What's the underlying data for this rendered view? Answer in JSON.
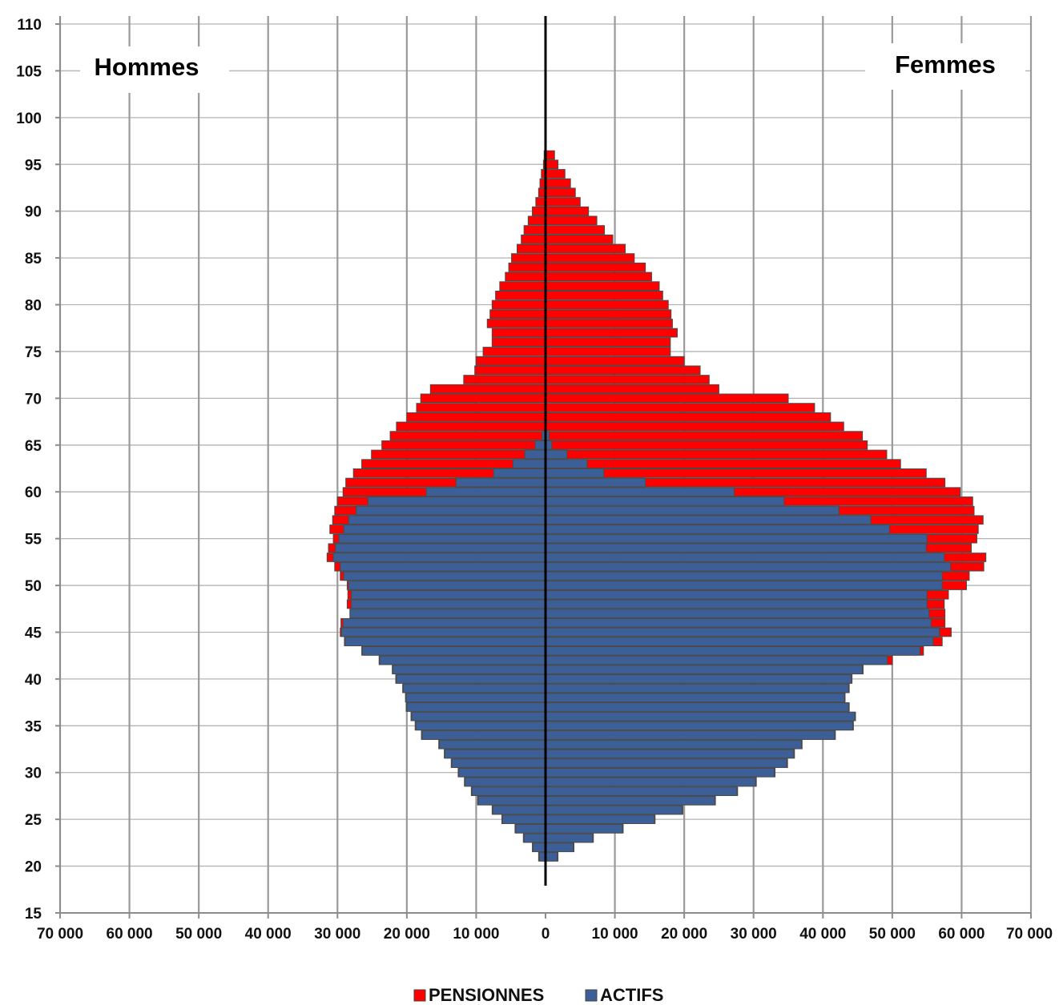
{
  "chart_data": {
    "type": "bar",
    "orientation": "horizontal",
    "layout": "population-pyramid",
    "groups": [
      {
        "key": "men",
        "label": "Hommes"
      },
      {
        "key": "women",
        "label": "Femmes"
      }
    ],
    "series": [
      {
        "key": "pensionnes",
        "name": "PENSIONNES",
        "color": "#ff0000"
      },
      {
        "key": "actifs",
        "name": "ACTIFS",
        "color": "#3b5f96"
      }
    ],
    "y_axis": {
      "min": 15,
      "max": 110,
      "ticks": [
        110,
        105,
        100,
        95,
        90,
        85,
        80,
        75,
        70,
        65,
        60,
        55,
        50,
        45,
        40,
        35,
        30,
        25,
        20,
        15
      ]
    },
    "x_axis": {
      "min": -70000,
      "max": 70000,
      "ticks": [
        -70000,
        -60000,
        -50000,
        -40000,
        -30000,
        -20000,
        -10000,
        0,
        10000,
        20000,
        30000,
        40000,
        50000,
        60000,
        70000
      ],
      "tick_labels": [
        "70 000",
        "60 000",
        "50 000",
        "40 000",
        "30 000",
        "20 000",
        "10 000",
        "0",
        "10 000",
        "20 000",
        "30 000",
        "40 000",
        "50 000",
        "60 000",
        "70 000"
      ]
    },
    "grid": {
      "vertical": true,
      "horizontal": true
    },
    "legend_position": "bottom-center",
    "ages": [
      96,
      95,
      94,
      93,
      92,
      91,
      90,
      89,
      88,
      87,
      86,
      85,
      84,
      83,
      82,
      81,
      80,
      79,
      78,
      77,
      76,
      75,
      74,
      73,
      72,
      71,
      70,
      69,
      68,
      67,
      66,
      65,
      64,
      63,
      62,
      61,
      60,
      59,
      58,
      57,
      56,
      55,
      54,
      53,
      52,
      51,
      50,
      49,
      48,
      47,
      46,
      45,
      44,
      43,
      42,
      41,
      40,
      39,
      38,
      37,
      36,
      35,
      34,
      33,
      32,
      31,
      30,
      29,
      28,
      27,
      26,
      25,
      24,
      23,
      22,
      21
    ],
    "men_total": [
      200,
      300,
      600,
      800,
      1000,
      1400,
      1900,
      2500,
      3100,
      3500,
      4100,
      4900,
      5300,
      5800,
      6600,
      7200,
      7700,
      8000,
      8400,
      7700,
      7700,
      9000,
      10000,
      10200,
      11800,
      16600,
      18000,
      18600,
      20000,
      21500,
      22400,
      23600,
      25100,
      26500,
      27700,
      28800,
      29200,
      30000,
      30400,
      30700,
      31100,
      30600,
      31300,
      31500,
      30400,
      29600,
      28600,
      28500,
      28600,
      28200,
      29500,
      29600,
      29000,
      26500,
      24000,
      22100,
      21600,
      20600,
      20200,
      20100,
      19400,
      18800,
      17900,
      15400,
      14600,
      13600,
      12600,
      11700,
      10700,
      9800,
      7700,
      6300,
      4400,
      3200,
      1900,
      1000
    ],
    "men_actifs": [
      0,
      0,
      0,
      0,
      0,
      0,
      0,
      0,
      0,
      0,
      0,
      0,
      0,
      0,
      0,
      0,
      0,
      0,
      0,
      0,
      0,
      0,
      0,
      0,
      0,
      0,
      0,
      0,
      0,
      0,
      500,
      1500,
      3000,
      4700,
      7500,
      12900,
      17200,
      25600,
      27300,
      28400,
      29100,
      29800,
      30300,
      30600,
      29600,
      29100,
      28400,
      28000,
      28000,
      28200,
      29200,
      29400,
      28900,
      26400,
      23900,
      22000,
      21500,
      20500,
      20100,
      20000,
      19300,
      18700,
      17800,
      15300,
      14500,
      13500,
      12500,
      11600,
      10600,
      9700,
      7600,
      6200,
      4300,
      3100,
      1800,
      900
    ],
    "women_total": [
      1300,
      1800,
      2800,
      3600,
      4300,
      5000,
      6200,
      7400,
      8500,
      9700,
      11500,
      12800,
      14400,
      15300,
      16400,
      16900,
      17700,
      18100,
      18300,
      19000,
      18000,
      18000,
      20000,
      22300,
      23600,
      25000,
      35000,
      38800,
      41100,
      43000,
      45700,
      46400,
      49200,
      51200,
      54900,
      57600,
      59800,
      61600,
      61800,
      63100,
      62400,
      62200,
      61400,
      63500,
      63200,
      61100,
      60700,
      58100,
      57500,
      57600,
      57600,
      58500,
      57200,
      54500,
      50000,
      45800,
      44200,
      43800,
      43200,
      43800,
      44700,
      44400,
      41800,
      37000,
      35900,
      34900,
      33100,
      30400,
      27700,
      24500,
      19800,
      15800,
      11200,
      6900,
      4100,
      1800
    ],
    "women_actifs": [
      0,
      0,
      0,
      0,
      0,
      0,
      0,
      0,
      0,
      0,
      0,
      0,
      0,
      0,
      0,
      0,
      0,
      0,
      0,
      0,
      0,
      0,
      0,
      0,
      0,
      0,
      0,
      0,
      0,
      0,
      500,
      900,
      3100,
      6000,
      8400,
      14400,
      27200,
      34400,
      42300,
      46900,
      49600,
      55000,
      54900,
      57500,
      58400,
      57200,
      57200,
      55000,
      55000,
      55300,
      55600,
      56800,
      55900,
      54000,
      49300,
      45700,
      44100,
      43700,
      43100,
      43700,
      44600,
      44300,
      41700,
      36900,
      35800,
      34800,
      33000,
      30300,
      27600,
      24400,
      19700,
      15700,
      11100,
      6800,
      4000,
      1700
    ]
  }
}
